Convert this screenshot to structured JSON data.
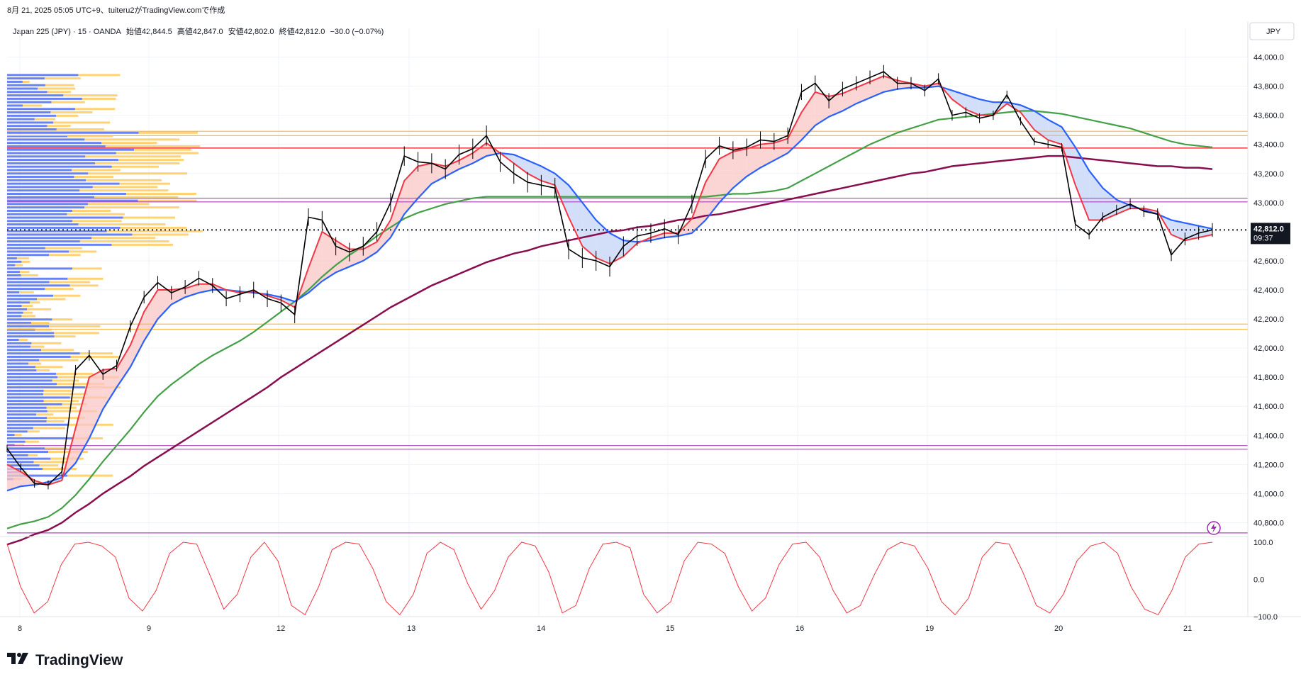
{
  "header": {
    "text": "8月 21, 2025 05:05 UTC+9、tuiteru2がTradingView.comで作成"
  },
  "legend": {
    "symbol": "Japan 225 (JPY) · 15 · OANDA",
    "open": "始値42,844.5",
    "high": "高値42,847.0",
    "low": "安値42,802.0",
    "close": "終値42,812.0",
    "change": "−30.0 (−0.07%)"
  },
  "currency_label": "JPY",
  "price_tag": {
    "value": "42,812.0",
    "countdown": "09:37"
  },
  "brand": {
    "name": "TradingView"
  },
  "icons": {
    "lightning": "lightning-icon",
    "logo": "tradingview-logo-icon"
  },
  "colors": {
    "candle": "#000000",
    "ema_fast": "#f23645",
    "ema_slow": "#2962ff",
    "ma_green": "#43a047",
    "ma_maroon": "#880e4f",
    "fill_up": "#f9c5c5",
    "fill_down": "#c4d4f7",
    "hline_orange": "#ffb74d",
    "hline_red": "#f23645",
    "hline_purple": "#ab47bc",
    "vp_blue": "#4f6ff0",
    "vp_orange": "#ffca5a",
    "oscillator": "#f23645"
  },
  "chart_data": [
    {
      "type": "line",
      "title": "Japan 225 (JPY) 15",
      "xlabel": "",
      "ylabel": "JPY",
      "ylim": [
        40700,
        44100
      ],
      "y_ticks": [
        "44,000.0",
        "43,800.0",
        "43,600.0",
        "43,400.0",
        "43,200.0",
        "43,000.0",
        "42,800.0",
        "42,600.0",
        "42,400.0",
        "42,200.0",
        "42,000.0",
        "41,800.0",
        "41,600.0",
        "41,400.0",
        "41,200.0",
        "41,000.0",
        "40,800.0"
      ],
      "x_ticks": [
        "8",
        "9",
        "12",
        "13",
        "14",
        "15",
        "16",
        "19",
        "20",
        "21"
      ],
      "grid": true,
      "last_price": 42812.0,
      "horizontal_levels": [
        {
          "price": 43490,
          "color": "orange"
        },
        {
          "price": 43460,
          "color": "orange"
        },
        {
          "price": 43375,
          "color": "red"
        },
        {
          "price": 43030,
          "color": "purple"
        },
        {
          "price": 43005,
          "color": "purple"
        },
        {
          "price": 42165,
          "color": "orange"
        },
        {
          "price": 42130,
          "color": "orange"
        },
        {
          "price": 41330,
          "color": "purple"
        },
        {
          "price": 41305,
          "color": "purple"
        },
        {
          "price": 40730,
          "color": "purple"
        }
      ],
      "series": [
        {
          "name": "close",
          "values": [
            41310,
            41180,
            41070,
            41060,
            41150,
            41850,
            41950,
            41820,
            41880,
            42150,
            42350,
            42450,
            42380,
            42420,
            42480,
            42430,
            42340,
            42370,
            42400,
            42340,
            42310,
            42230,
            42900,
            42880,
            42700,
            42660,
            42700,
            42800,
            43000,
            43320,
            43280,
            43270,
            43230,
            43330,
            43370,
            43460,
            43280,
            43200,
            43140,
            43120,
            43100,
            42680,
            42620,
            42600,
            42560,
            42700,
            42770,
            42790,
            42820,
            42780,
            42990,
            43300,
            43390,
            43360,
            43380,
            43430,
            43420,
            43460,
            43760,
            43820,
            43700,
            43780,
            43820,
            43860,
            43900,
            43820,
            43820,
            43770,
            43850,
            43600,
            43620,
            43580,
            43600,
            43740,
            43560,
            43420,
            43400,
            43380,
            42850,
            42780,
            42900,
            42950,
            42990,
            42940,
            42920,
            42640,
            42750,
            42790,
            42812
          ]
        },
        {
          "name": "ema_fast",
          "values": [
            41200,
            41150,
            41090,
            41060,
            41090,
            41450,
            41800,
            41850,
            41860,
            42020,
            42250,
            42400,
            42400,
            42410,
            42440,
            42440,
            42400,
            42380,
            42390,
            42360,
            42330,
            42280,
            42550,
            42800,
            42740,
            42680,
            42680,
            42730,
            42880,
            43150,
            43250,
            43270,
            43250,
            43290,
            43340,
            43410,
            43340,
            43270,
            43200,
            43150,
            43120,
            42900,
            42700,
            42620,
            42580,
            42630,
            42720,
            42760,
            42790,
            42790,
            42890,
            43140,
            43300,
            43350,
            43370,
            43400,
            43410,
            43440,
            43620,
            43760,
            43730,
            43750,
            43790,
            43830,
            43870,
            43840,
            43820,
            43800,
            43820,
            43710,
            43640,
            43600,
            43600,
            43680,
            43620,
            43500,
            43430,
            43400,
            43120,
            42880,
            42880,
            42920,
            42960,
            42960,
            42940,
            42780,
            42740,
            42760,
            42780
          ]
        },
        {
          "name": "ema_slow",
          "values": [
            41020,
            41050,
            41060,
            41080,
            41110,
            41210,
            41380,
            41580,
            41730,
            41870,
            42050,
            42200,
            42300,
            42350,
            42380,
            42400,
            42400,
            42390,
            42380,
            42370,
            42350,
            42320,
            42380,
            42460,
            42520,
            42560,
            42600,
            42660,
            42760,
            42920,
            43030,
            43130,
            43180,
            43230,
            43270,
            43320,
            43340,
            43330,
            43290,
            43250,
            43200,
            43120,
            43000,
            42880,
            42790,
            42740,
            42730,
            42740,
            42760,
            42770,
            42790,
            42880,
            43000,
            43100,
            43180,
            43240,
            43290,
            43340,
            43430,
            43530,
            43590,
            43630,
            43680,
            43720,
            43760,
            43780,
            43790,
            43790,
            43800,
            43770,
            43740,
            43710,
            43690,
            43690,
            43670,
            43630,
            43570,
            43520,
            43380,
            43220,
            43100,
            43020,
            42980,
            42950,
            42920,
            42880,
            42860,
            42840,
            42820
          ]
        },
        {
          "name": "ma_green",
          "values": [
            40760,
            40790,
            40810,
            40840,
            40900,
            40990,
            41100,
            41220,
            41330,
            41440,
            41560,
            41670,
            41750,
            41820,
            41890,
            41950,
            42000,
            42050,
            42110,
            42180,
            42250,
            42320,
            42400,
            42490,
            42570,
            42640,
            42700,
            42770,
            42830,
            42890,
            42930,
            42960,
            42990,
            43010,
            43030,
            43040,
            43040,
            43040,
            43040,
            43040,
            43040,
            43040,
            43040,
            43040,
            43040,
            43040,
            43040,
            43040,
            43040,
            43040,
            43040,
            43040,
            43050,
            43060,
            43060,
            43070,
            43080,
            43100,
            43150,
            43200,
            43250,
            43300,
            43350,
            43400,
            43440,
            43480,
            43510,
            43540,
            43570,
            43580,
            43590,
            43600,
            43610,
            43620,
            43630,
            43630,
            43620,
            43610,
            43590,
            43570,
            43550,
            43530,
            43510,
            43480,
            43450,
            43420,
            43400,
            43390,
            43380
          ]
        },
        {
          "name": "ma_maroon",
          "values": [
            40650,
            40680,
            40720,
            40750,
            40800,
            40870,
            40930,
            41000,
            41060,
            41120,
            41190,
            41250,
            41310,
            41370,
            41430,
            41490,
            41550,
            41610,
            41670,
            41730,
            41800,
            41860,
            41920,
            41980,
            42040,
            42100,
            42160,
            42220,
            42280,
            42330,
            42380,
            42430,
            42470,
            42510,
            42550,
            42590,
            42620,
            42650,
            42670,
            42700,
            42720,
            42740,
            42760,
            42780,
            42800,
            42810,
            42830,
            42840,
            42860,
            42880,
            42890,
            42910,
            42920,
            42940,
            42960,
            42980,
            43000,
            43020,
            43040,
            43060,
            43080,
            43100,
            43120,
            43140,
            43160,
            43180,
            43200,
            43210,
            43230,
            43250,
            43260,
            43270,
            43280,
            43290,
            43300,
            43310,
            43320,
            43320,
            43310,
            43300,
            43290,
            43280,
            43270,
            43260,
            43250,
            43250,
            43240,
            43240,
            43230
          ]
        }
      ]
    },
    {
      "type": "line",
      "title": "",
      "ylim": [
        -100,
        100
      ],
      "y_ticks": [
        "100.0",
        "0.0",
        "−100.0"
      ],
      "series": [
        {
          "name": "",
          "values": [
            95,
            -20,
            -90,
            -60,
            40,
            95,
            100,
            90,
            60,
            -50,
            -85,
            -30,
            70,
            100,
            95,
            10,
            -80,
            -40,
            60,
            100,
            50,
            -70,
            -95,
            -20,
            80,
            100,
            95,
            30,
            -60,
            -95,
            -40,
            70,
            100,
            80,
            -10,
            -80,
            -30,
            60,
            100,
            90,
            20,
            -90,
            -70,
            30,
            95,
            100,
            85,
            -40,
            -90,
            -60,
            50,
            100,
            95,
            70,
            -20,
            -85,
            -50,
            40,
            95,
            100,
            60,
            -30,
            -90,
            -70,
            10,
            80,
            100,
            90,
            30,
            -60,
            -95,
            -50,
            60,
            100,
            95,
            20,
            -70,
            -90,
            -40,
            50,
            90,
            100,
            70,
            -20,
            -80,
            -95,
            -30,
            60,
            95,
            100
          ]
        }
      ]
    }
  ]
}
